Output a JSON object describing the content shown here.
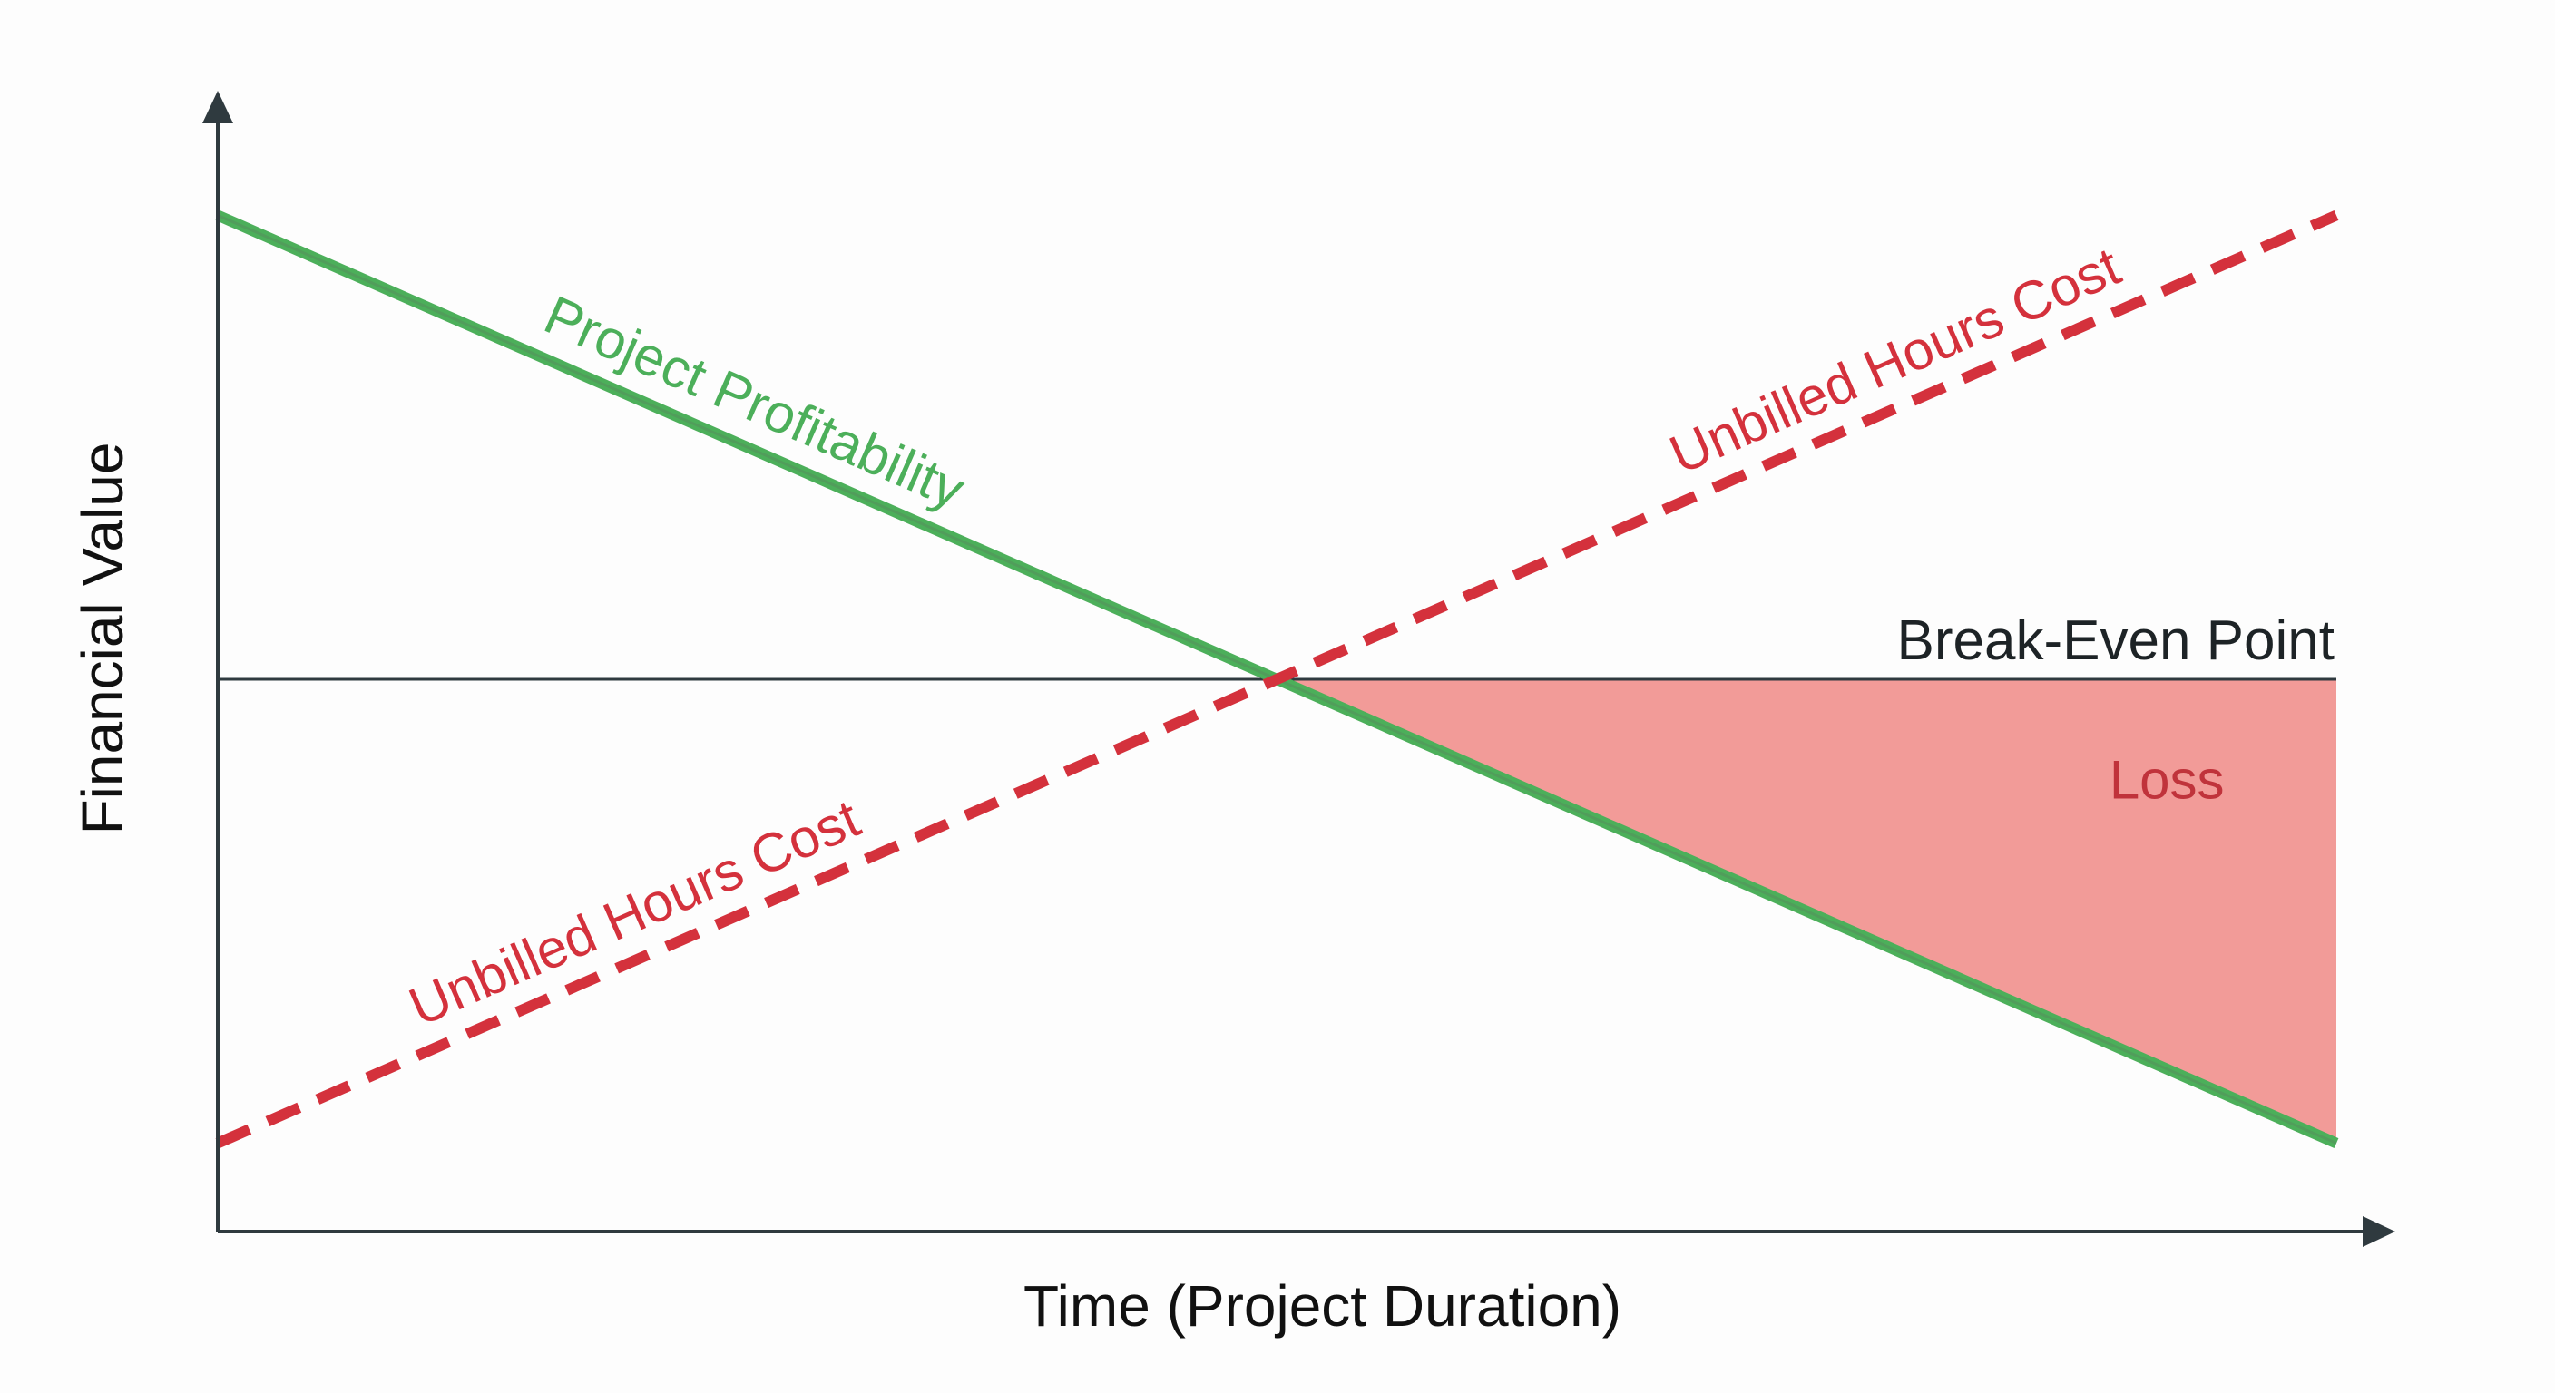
{
  "chart_data": {
    "type": "line",
    "title": "",
    "xlabel": "Time (Project Duration)",
    "ylabel": "Financial Value",
    "xlim": [
      0,
      1
    ],
    "ylim": [
      0,
      1
    ],
    "grid": false,
    "legend": "none",
    "series": [
      {
        "key": "profitability",
        "name": "Project Profitability",
        "style": "solid",
        "color": "#4caf5a",
        "x": [
          0,
          1
        ],
        "y": [
          0.92,
          0.08
        ]
      },
      {
        "key": "unbilled",
        "name": "Unbilled Hours Cost",
        "style": "dashed",
        "color": "#d4313c",
        "x": [
          0,
          1
        ],
        "y": [
          0.08,
          0.92
        ]
      }
    ],
    "reference_line": {
      "label": "Break-Even Point",
      "y": 0.5,
      "color": "#2f3a3f"
    },
    "region": {
      "label": "Loss",
      "x_start": 0.5,
      "x_end": 1,
      "fill": "#f29b98",
      "text_color": "#c0333b"
    },
    "annotations": [
      {
        "text": "Project Profitability",
        "series": "profitability",
        "x": 0.245,
        "color": "#4caf5a"
      },
      {
        "text": "Unbilled Hours Cost",
        "series": "unbilled",
        "x": 0.8,
        "color": "#d4313c"
      },
      {
        "text": "Unbilled Hours Cost",
        "series": "unbilled",
        "x": 0.205,
        "color": "#d4313c"
      }
    ],
    "axis_color": "#2f3a3f"
  }
}
